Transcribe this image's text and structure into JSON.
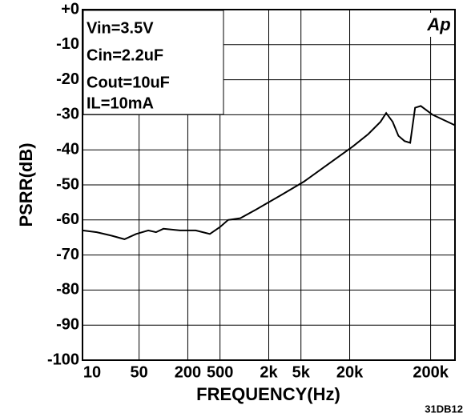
{
  "chart_data": {
    "type": "line",
    "xlabel": "FREQUENCY(Hz)",
    "ylabel": "PSRR(dB)",
    "annotations": [
      "Vin=3.5V",
      "Cin=2.2uF",
      "Cout=10uF",
      "IL=10mA"
    ],
    "logo": "Ap",
    "footnote": "31DB12",
    "xscale": "log",
    "grid": true,
    "xlim": [
      10,
      400000
    ],
    "xticks": [
      10,
      50,
      200,
      500,
      {
        "value": 2000,
        "label": "2k"
      },
      {
        "value": 5000,
        "label": "5k"
      },
      {
        "value": 20000,
        "label": "20k"
      },
      {
        "value": 200000,
        "label": "200k"
      }
    ],
    "ylim": [
      -100,
      0
    ],
    "yticks": [
      {
        "value": 0,
        "label": "+0"
      },
      -10,
      -20,
      -30,
      -40,
      -50,
      -60,
      -70,
      -80,
      -90,
      -100
    ],
    "series": [
      {
        "color": "#000000",
        "x": [
          10,
          15,
          23,
          33,
          46,
          65,
          81,
          100,
          160,
          250,
          375,
          500,
          630,
          890,
          1400,
          2800,
          5500,
          11000,
          22000,
          34000,
          48000,
          56500,
          68000,
          80000,
          95500,
          112000,
          128500,
          151000,
          212000,
          400000
        ],
        "values": [
          -63,
          -63.5,
          -64.5,
          -65.5,
          -64,
          -63,
          -63.5,
          -62.5,
          -63,
          -63,
          -64,
          -62,
          -60,
          -59.5,
          -57,
          -53,
          -49,
          -44,
          -39,
          -35.5,
          -32,
          -29.5,
          -32,
          -36,
          -37.5,
          -38,
          -28,
          -27.5,
          -30,
          -33
        ]
      }
    ]
  }
}
